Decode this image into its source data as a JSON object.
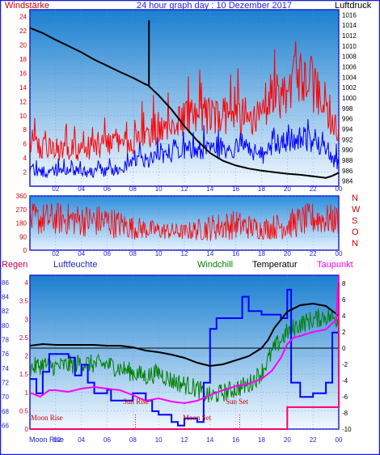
{
  "colors": {
    "frame": "#1e1ed2",
    "plot_bg_top": "#1a7fd0",
    "plot_bg_bottom": "#f2f8ff",
    "grid": "#5a8cc8",
    "wind_gust": "#ff0000",
    "wind_avg": "#0000ff",
    "pressure": "#000000",
    "direction": "#ff0000",
    "temperature": "#000000",
    "windchill": "#008000",
    "dewpoint": "#ff00ff",
    "humidity": "#0000ff",
    "rain": "#ff0066",
    "sun_label": "#cc0000",
    "moon_label": "#cc0000"
  },
  "header": {
    "left": "Windstärke",
    "center": "24 hour graph day : 10 Dezember 2017",
    "right": "Luftdruck"
  },
  "bottom_header": {
    "regen": "Regen",
    "luftfeuchte": "Luftfeuchte",
    "windchill": "Windchill",
    "temperatur": "Temperatur",
    "taupunkt": "Taupunkt"
  },
  "events": {
    "moon_rise": "Moon Rise",
    "sun_rise": "Sun Rise",
    "moon_set": "Moon Set",
    "sun_set": "Sun Set",
    "bottom_moon_rise": "Moon Rise"
  },
  "chart_data": [
    {
      "type": "line",
      "name": "wind-pressure",
      "x_ticks": [
        "02",
        "04",
        "06",
        "08",
        "10",
        "12",
        "14",
        "16",
        "18",
        "20",
        "22",
        "00"
      ],
      "y_left_ticks": [
        "2",
        "4",
        "6",
        "8",
        "10",
        "12",
        "14",
        "16",
        "18",
        "20",
        "22",
        "24"
      ],
      "y_left_range": [
        0,
        25
      ],
      "y_right_ticks": [
        "984",
        "986",
        "988",
        "990",
        "992",
        "994",
        "996",
        "998",
        "1000",
        "1002",
        "1004",
        "1006",
        "1008",
        "1010",
        "1012",
        "1014",
        "1016"
      ],
      "y_right_range": [
        983,
        1017
      ],
      "pressure": {
        "hours": [
          0,
          1,
          2,
          3,
          4,
          5,
          6,
          7,
          8,
          9,
          9.2,
          10,
          11,
          12,
          13,
          14,
          15,
          16,
          17,
          18,
          19,
          20,
          21,
          22,
          23,
          23.5,
          24
        ],
        "values": [
          1013.5,
          1012.5,
          1011.2,
          1010.0,
          1008.8,
          1007.4,
          1006.2,
          1005.0,
          1003.9,
          1002.6,
          1002.4,
          1000.5,
          997.8,
          994.6,
          991.8,
          989.4,
          987.9,
          987.0,
          986.4,
          986.0,
          985.7,
          985.4,
          985.2,
          984.9,
          984.6,
          985.0,
          985.6
        ]
      },
      "pressure_spike": {
        "hour": 9.25,
        "peak": 1015.0
      },
      "wind_gust": {
        "hours": [
          0,
          2,
          4,
          6,
          8,
          10,
          12,
          14,
          16,
          18,
          19,
          20,
          21,
          22,
          23,
          24
        ],
        "typical": [
          6,
          5,
          5,
          6,
          6,
          8,
          9,
          10,
          10,
          9,
          12,
          13,
          16,
          14,
          10,
          7
        ],
        "peak": [
          10,
          11,
          10,
          10,
          12,
          14,
          16,
          18,
          17,
          14,
          20,
          21,
          24,
          22,
          18,
          12
        ]
      },
      "wind_avg": {
        "hours": [
          0,
          2,
          4,
          6,
          8,
          10,
          12,
          14,
          16,
          18,
          19,
          20,
          21,
          22,
          23,
          24
        ],
        "typical": [
          2,
          2,
          2,
          2,
          3,
          4,
          5,
          5,
          5,
          4,
          6,
          6,
          7,
          6,
          5,
          3
        ],
        "peak": [
          4,
          4,
          4,
          4,
          6,
          7,
          8,
          9,
          8,
          7,
          9,
          10,
          11,
          10,
          8,
          6
        ]
      }
    },
    {
      "type": "scatter",
      "name": "wind-direction",
      "x_ticks": [
        "02",
        "04",
        "06",
        "08",
        "10",
        "12",
        "14",
        "16",
        "18",
        "20",
        "22",
        "00"
      ],
      "y_ticks": [
        "0",
        "90",
        "180",
        "270",
        "360"
      ],
      "y_range": [
        0,
        360
      ],
      "right_labels": [
        "N",
        "W",
        "S",
        "O",
        "N"
      ],
      "direction": {
        "hours": [
          0,
          2,
          4,
          6,
          8,
          10,
          12,
          14,
          16,
          18,
          20,
          22,
          24
        ],
        "center": [
          200,
          210,
          200,
          190,
          150,
          130,
          120,
          150,
          170,
          140,
          170,
          210,
          200
        ],
        "spread": [
          110,
          110,
          110,
          110,
          80,
          60,
          55,
          90,
          100,
          70,
          100,
          110,
          100
        ]
      }
    },
    {
      "type": "line",
      "name": "temperature-humidity",
      "x_ticks": [
        "02",
        "04",
        "06",
        "08",
        "10",
        "12",
        "14",
        "16",
        "18",
        "20",
        "22",
        "00"
      ],
      "x_first_label": "Moon Rise",
      "y_left_ticks": [
        "0",
        "0.5",
        "1",
        "1.5",
        "2",
        "2.5",
        "3",
        "3.5",
        "4"
      ],
      "y_left_range": [
        0,
        4.2
      ],
      "y_humidity_ticks": [
        "66",
        "68",
        "70",
        "72",
        "74",
        "76",
        "78",
        "80",
        "82",
        "84",
        "86"
      ],
      "y_humidity_range": [
        65.5,
        87
      ],
      "y_right_ticks": [
        "-10",
        "-8",
        "-6",
        "-4",
        "-2",
        "0",
        "2",
        "4",
        "6",
        "8"
      ],
      "y_right_range": [
        -10,
        9
      ],
      "temperature": {
        "hours": [
          0,
          1,
          2,
          3,
          4,
          5,
          6,
          7,
          8,
          9,
          10,
          11,
          12,
          13,
          14,
          15,
          16,
          17,
          18,
          18.5,
          19,
          20,
          21,
          22,
          23,
          24
        ],
        "values": [
          0.3,
          0.5,
          0.4,
          0.4,
          0.4,
          0.4,
          0.3,
          0.3,
          0.1,
          -0.3,
          -0.5,
          -0.8,
          -1.2,
          -1.8,
          -2.2,
          -2.0,
          -1.5,
          -1.0,
          0.0,
          1.0,
          2.5,
          4.5,
          5.3,
          5.5,
          5.2,
          4.0
        ]
      },
      "windchill": {
        "hours": [
          0,
          1,
          2,
          3,
          4,
          5,
          6,
          7,
          8,
          9,
          10,
          11,
          12,
          13,
          14,
          15,
          16,
          17,
          18,
          19,
          20,
          21,
          22,
          23,
          24
        ],
        "values": [
          -2.5,
          -2.0,
          -2.3,
          -2.1,
          -1.8,
          -2.0,
          -2.0,
          -2.5,
          -3.0,
          -3.5,
          -3.0,
          -4.0,
          -4.5,
          -5.0,
          -6.0,
          -5.5,
          -5.0,
          -4.5,
          -3.0,
          0.0,
          2.0,
          3.0,
          3.5,
          4.0,
          3.5
        ]
      },
      "dewpoint": {
        "hours": [
          0,
          0.8,
          1.5,
          2,
          3,
          4,
          5,
          6,
          7,
          8,
          9,
          10,
          11,
          12,
          13,
          14,
          15,
          16,
          17,
          18,
          18.8,
          19.5,
          20,
          20.5,
          21,
          22,
          23,
          23.8,
          24
        ],
        "values": [
          -5.5,
          -6.0,
          -5.2,
          -5.2,
          -5.4,
          -5.0,
          -4.8,
          -5.0,
          -5.2,
          -5.8,
          -6.5,
          -6.2,
          -6.6,
          -6.8,
          -6.5,
          -5.8,
          -5.2,
          -4.7,
          -4.4,
          -3.8,
          -2.8,
          -1.2,
          0.5,
          1.3,
          1.5,
          2.0,
          2.3,
          3.5,
          9.0
        ]
      },
      "humidity": {
        "hours": [
          0,
          0.5,
          1,
          1.5,
          2,
          3,
          3.5,
          4,
          4.5,
          5,
          6,
          6.3,
          7,
          8,
          9,
          9.5,
          10,
          11,
          11.5,
          12,
          13,
          13.5,
          14,
          14.5,
          15,
          16,
          16.5,
          17,
          18,
          19,
          19.5,
          20,
          20.3,
          21,
          22,
          23,
          23.5,
          24
        ],
        "values": [
          72.5,
          70.5,
          73.5,
          76.0,
          76.0,
          75.5,
          73.0,
          74.5,
          72.0,
          70.5,
          71.0,
          69.5,
          69.5,
          70.5,
          69.5,
          68.0,
          67.5,
          66.5,
          66.0,
          67.0,
          66.5,
          72.0,
          79.5,
          81.0,
          81.0,
          81.0,
          84.0,
          82.0,
          81.5,
          81.5,
          81.0,
          85.0,
          72.0,
          70.0,
          70.5,
          72.0,
          79.0,
          84.0
        ]
      },
      "rain": {
        "hours": [
          0,
          19.9,
          20.0,
          23.8,
          24.0
        ],
        "values": [
          0,
          0,
          0.6,
          0.6,
          4.0
        ]
      },
      "events": {
        "moon_rise_hour": 0.5,
        "sun_rise_hour": 8.2,
        "moon_set_hour": 13.3,
        "sun_set_hour": 16.3
      }
    }
  ]
}
